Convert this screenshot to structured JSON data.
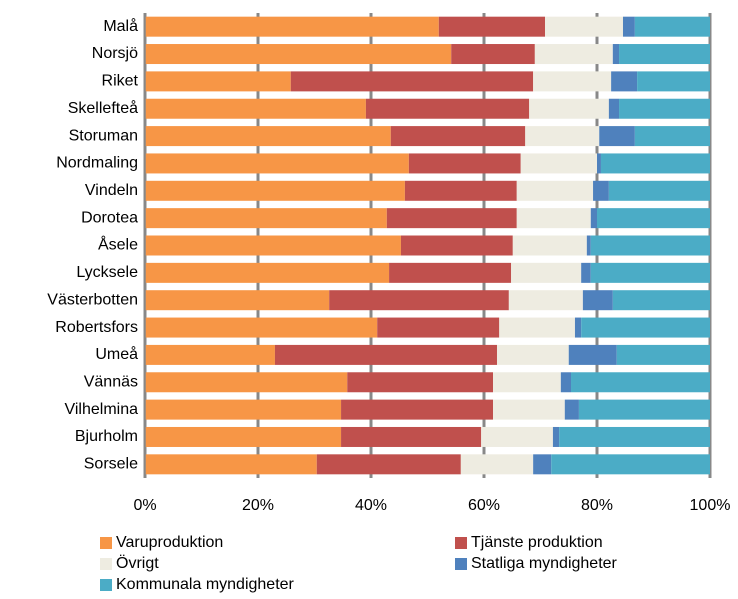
{
  "chart_data": {
    "type": "stacked_barh",
    "categories": [
      "Malå",
      "Norsjö",
      "Riket",
      "Skellefteå",
      "Storuman",
      "Nordmaling",
      "Vindeln",
      "Dorotea",
      "Åsele",
      "Lycksele",
      "Västerbotten",
      "Robertsfors",
      "Umeå",
      "Vännäs",
      "Vilhelmina",
      "Bjurholm",
      "Sorsele"
    ],
    "series": [
      {
        "name": "Varuproduktion",
        "color": "#f79646",
        "values": [
          52.0,
          54.2,
          25.8,
          39.1,
          43.5,
          46.7,
          46.0,
          42.8,
          45.3,
          43.2,
          32.6,
          41.1,
          23.0,
          35.8,
          34.7,
          34.7,
          30.4
        ]
      },
      {
        "name": "Tjänste produktion",
        "color": "#c0504d",
        "values": [
          18.8,
          14.8,
          42.9,
          28.9,
          23.8,
          19.8,
          19.8,
          23.0,
          19.8,
          21.6,
          31.8,
          21.6,
          39.3,
          25.8,
          26.9,
          24.8,
          25.5
        ]
      },
      {
        "name": "Övrigt",
        "color": "#eeece1",
        "values": [
          13.8,
          13.8,
          13.8,
          14.1,
          13.1,
          13.5,
          13.5,
          13.1,
          13.1,
          12.4,
          13.1,
          13.4,
          12.7,
          12.0,
          12.7,
          12.7,
          12.8
        ]
      },
      {
        "name": "Statliga myndigheter",
        "color": "#4f81bd",
        "values": [
          2.1,
          1.1,
          4.6,
          1.8,
          6.3,
          0.7,
          2.8,
          1.1,
          0.7,
          1.7,
          5.3,
          1.1,
          8.5,
          1.8,
          2.5,
          1.1,
          3.2
        ]
      },
      {
        "name": "Kommunala myndigheter",
        "color": "#4bacc6",
        "values": [
          13.3,
          16.1,
          12.9,
          16.1,
          13.3,
          19.3,
          17.9,
          20.0,
          21.1,
          21.1,
          17.2,
          22.8,
          16.5,
          24.6,
          23.2,
          26.7,
          28.1
        ]
      }
    ],
    "xlim": [
      0,
      100
    ],
    "xticks": [
      {
        "value": 0,
        "label": "0%"
      },
      {
        "value": 20,
        "label": "20%"
      },
      {
        "value": 40,
        "label": "40%"
      },
      {
        "value": 60,
        "label": "60%"
      },
      {
        "value": 80,
        "label": "80%"
      },
      {
        "value": 100,
        "label": "100%"
      }
    ],
    "grid": true
  }
}
